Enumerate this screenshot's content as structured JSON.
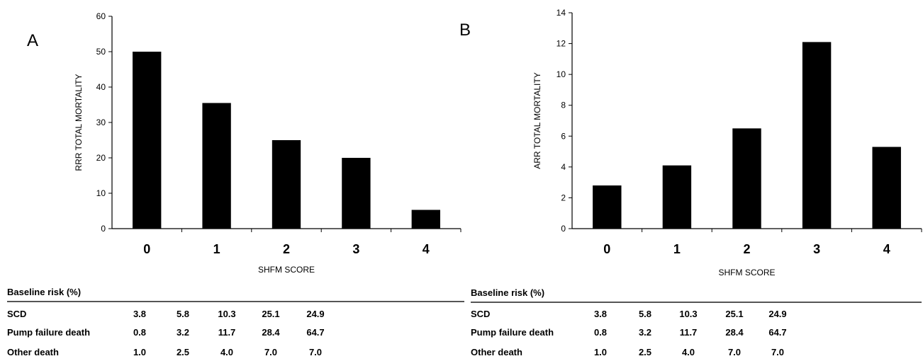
{
  "chart_data": [
    {
      "type": "bar",
      "panel_label": "A",
      "categories": [
        "0",
        "1",
        "2",
        "3",
        "4"
      ],
      "values": [
        50,
        35.5,
        25,
        20,
        5.3
      ],
      "xlabel": "SHFM SCORE",
      "ylabel": "RRR TOTAL MORTALITY",
      "ylim": [
        0,
        60
      ],
      "yticks": [
        "0",
        "10",
        "20",
        "30",
        "40",
        "50",
        "60"
      ],
      "bar_color": "#000000",
      "grid": false,
      "table": {
        "header": "Baseline risk (%)",
        "rows": [
          {
            "label": "SCD",
            "values": [
              "3.8",
              "5.8",
              "10.3",
              "25.1",
              "24.9"
            ]
          },
          {
            "label": "Pump failure death",
            "values": [
              "0.8",
              "3.2",
              "11.7",
              "28.4",
              "64.7"
            ]
          },
          {
            "label": "Other death",
            "values": [
              "1.0",
              "2.5",
              "4.0",
              "7.0",
              "7.0"
            ]
          }
        ]
      }
    },
    {
      "type": "bar",
      "panel_label": "B",
      "categories": [
        "0",
        "1",
        "2",
        "3",
        "4"
      ],
      "values": [
        2.8,
        4.1,
        6.5,
        12.1,
        5.3
      ],
      "xlabel": "SHFM SCORE",
      "ylabel": "ARR TOTAL MORTALITY",
      "ylim": [
        0,
        14
      ],
      "yticks": [
        "0",
        "2",
        "4",
        "6",
        "8",
        "10",
        "12",
        "14"
      ],
      "bar_color": "#000000",
      "grid": false,
      "table": {
        "header": "Baseline risk (%)",
        "rows": [
          {
            "label": "SCD",
            "values": [
              "3.8",
              "5.8",
              "10.3",
              "25.1",
              "24.9"
            ]
          },
          {
            "label": "Pump failure death",
            "values": [
              "0.8",
              "3.2",
              "11.7",
              "28.4",
              "64.7"
            ]
          },
          {
            "label": "Other death",
            "values": [
              "1.0",
              "2.5",
              "4.0",
              "7.0",
              "7.0"
            ]
          }
        ]
      }
    }
  ]
}
